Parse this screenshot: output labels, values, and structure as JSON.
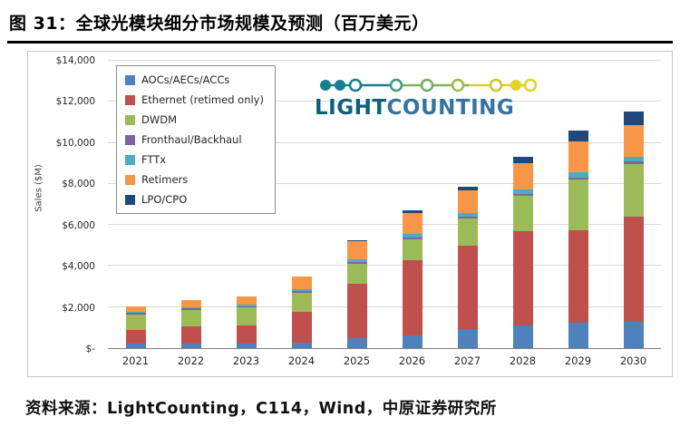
{
  "header": {
    "title": "图 31：全球光模块细分市场规模及预测（百万美元）"
  },
  "footer": {
    "source": "资料来源：LightCounting，C114，Wind，中原证券研究所"
  },
  "logo": {
    "part1": "LIGHT",
    "part2": "COUNTING"
  },
  "chart_data": {
    "type": "bar",
    "stacked": true,
    "title": "全球光模块细分市场规模及预测（百万美元）",
    "xlabel": "",
    "ylabel": "Sales ($M)",
    "ylim": [
      0,
      14000
    ],
    "ytick_labels": [
      "$-",
      "$2,000",
      "$4,000",
      "$6,000",
      "$8,000",
      "$10,000",
      "$12,000",
      "$14,000"
    ],
    "grid": true,
    "legend_position": "upper-left",
    "categories": [
      "2021",
      "2022",
      "2023",
      "2024",
      "2025",
      "2026",
      "2027",
      "2028",
      "2029",
      "2030"
    ],
    "series": [
      {
        "name": "AOCs/AECs/ACCs",
        "color": "#4F81BD",
        "values": [
          200,
          210,
          220,
          260,
          480,
          620,
          950,
          1100,
          1250,
          1300
        ]
      },
      {
        "name": "Ethernet (retimed only)",
        "color": "#C0504D",
        "values": [
          700,
          850,
          900,
          1500,
          2650,
          3650,
          4050,
          4600,
          4500,
          5100
        ]
      },
      {
        "name": "DWDM",
        "color": "#9BBB59",
        "values": [
          750,
          800,
          850,
          950,
          1000,
          1050,
          1300,
          1700,
          2450,
          2550
        ]
      },
      {
        "name": "Fronthaul/Backhaul",
        "color": "#8064A2",
        "values": [
          60,
          70,
          60,
          70,
          80,
          90,
          100,
          110,
          120,
          130
        ]
      },
      {
        "name": "FTTx",
        "color": "#4BACC6",
        "values": [
          70,
          80,
          90,
          110,
          130,
          160,
          190,
          210,
          230,
          250
        ]
      },
      {
        "name": "Retimers",
        "color": "#F79646",
        "values": [
          270,
          340,
          380,
          600,
          880,
          1000,
          1100,
          1300,
          1500,
          1550
        ]
      },
      {
        "name": "LPO/CPO",
        "color": "#1F497D",
        "values": [
          0,
          0,
          0,
          20,
          60,
          130,
          180,
          280,
          550,
          650
        ]
      }
    ]
  }
}
